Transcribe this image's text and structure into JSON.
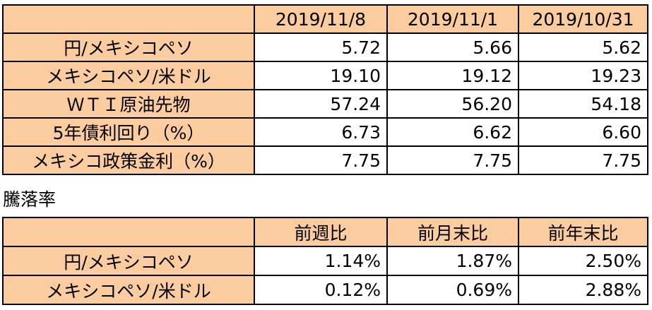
{
  "rates_table": {
    "columns": [
      "2019/11/8",
      "2019/11/1",
      "2019/10/31"
    ],
    "rows": [
      {
        "label": "円/メキシコペソ",
        "values": [
          "5.72",
          "5.66",
          "5.62"
        ]
      },
      {
        "label": "メキシコペソ/米ドル",
        "values": [
          "19.10",
          "19.12",
          "19.23"
        ]
      },
      {
        "label": "ＷＴＩ原油先物",
        "values": [
          "57.24",
          "56.20",
          "54.18"
        ]
      },
      {
        "label": "5年債利回り（%）",
        "values": [
          "6.73",
          "6.62",
          "6.60"
        ]
      },
      {
        "label": "メキシコ政策金利（%）",
        "values": [
          "7.75",
          "7.75",
          "7.75"
        ]
      }
    ]
  },
  "change_caption": "騰落率",
  "change_table": {
    "columns": [
      "前週比",
      "前月末比",
      "前年末比"
    ],
    "rows": [
      {
        "label": "円/メキシコペソ",
        "values": [
          "1.14%",
          "1.87%",
          "2.50%"
        ]
      },
      {
        "label": "メキシコペソ/米ドル",
        "values": [
          "0.12%",
          "0.69%",
          "2.88%"
        ]
      }
    ]
  },
  "colors": {
    "header_fill": "#fbcc9f",
    "border": "#000000"
  }
}
